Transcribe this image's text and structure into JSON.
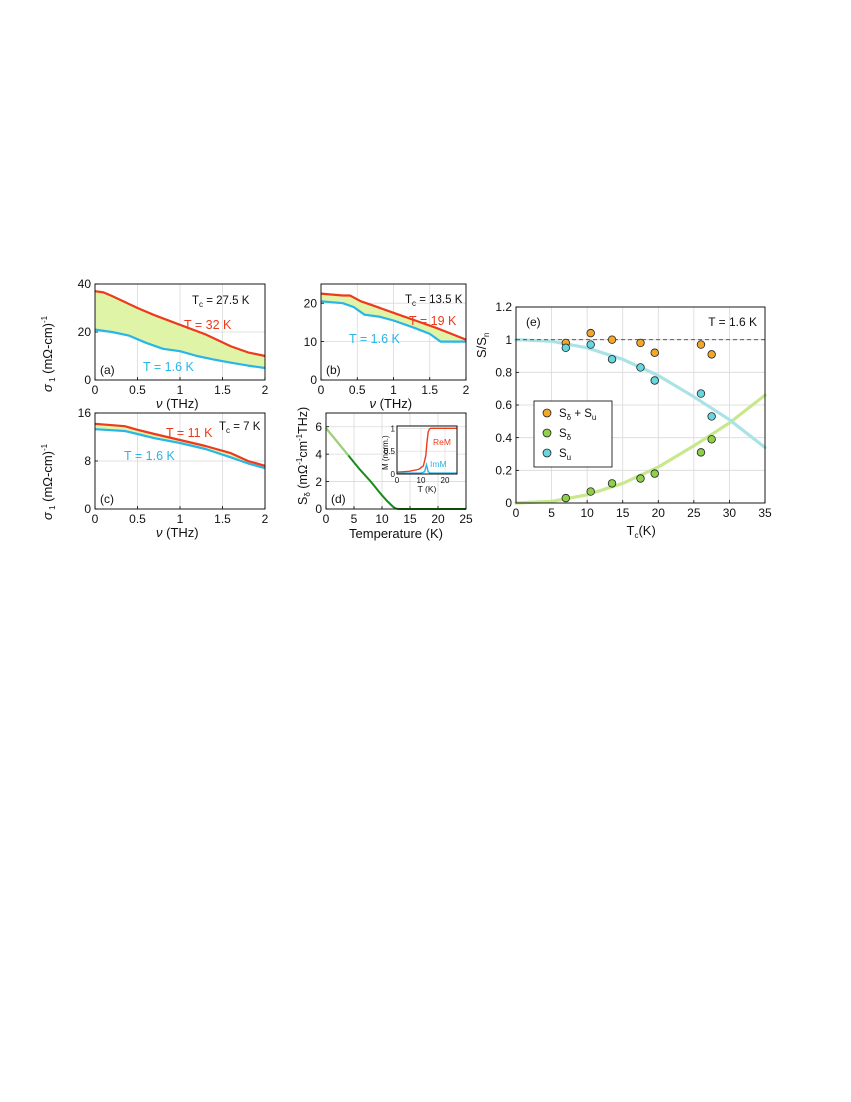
{
  "colors": {
    "red": "#ee3a1c",
    "blue": "#29b5e8",
    "fill": "#e0f4a8",
    "orange": "#f3a62a",
    "green": "#8ed04a",
    "cyan": "#66d7de",
    "dark_green": "#1a8a1a",
    "grid": "#d9d9d9",
    "green_fit": "#c7e88c",
    "cyan_fit": "#a9e3e6"
  },
  "chart_data": [
    {
      "type": "line",
      "panel": "(a)",
      "xlabel": "ν (THz)",
      "ylabel": "σ 1 (mΩ-cm)-1",
      "xlim": [
        0,
        2
      ],
      "ylim": [
        0,
        40
      ],
      "xticks": [
        "0",
        "0.5",
        "1",
        "1.5",
        "2"
      ],
      "yticks": [
        "0",
        "20",
        "40"
      ],
      "tc_label": "Tc = 27.5 K",
      "shaded": true,
      "series": [
        {
          "name": "T = 32 K",
          "color": "red",
          "x": [
            0,
            0.1,
            0.2,
            0.35,
            0.5,
            0.7,
            1.0,
            1.3,
            1.6,
            1.8,
            2.0
          ],
          "y": [
            37,
            36.5,
            35,
            32.5,
            30,
            27,
            23,
            19,
            14,
            11.5,
            10
          ]
        },
        {
          "name": "T = 1.6 K",
          "color": "blue",
          "x": [
            0,
            0.2,
            0.4,
            0.6,
            0.8,
            1.0,
            1.2,
            1.4,
            1.6,
            1.8,
            2.0
          ],
          "y": [
            21,
            20,
            18.5,
            15.5,
            13,
            12,
            10,
            8.5,
            7.2,
            6,
            5
          ]
        }
      ]
    },
    {
      "type": "line",
      "panel": "(b)",
      "xlabel": "ν (THz)",
      "ylabel": "",
      "xlim": [
        0,
        2
      ],
      "ylim": [
        0,
        25
      ],
      "xticks": [
        "0",
        "0.5",
        "1",
        "1.5",
        "2"
      ],
      "yticks": [
        "0",
        "10",
        "20"
      ],
      "tc_label": "Tc = 13.5 K",
      "shaded": true,
      "series": [
        {
          "name": "T = 19 K",
          "color": "red",
          "x": [
            0,
            0.3,
            0.4,
            0.55,
            0.7,
            1.0,
            1.3,
            1.6,
            1.8,
            2.0
          ],
          "y": [
            22.5,
            22,
            22,
            20.5,
            19.5,
            17.5,
            15.5,
            13.5,
            12,
            10.5
          ]
        },
        {
          "name": "T = 1.6 K",
          "color": "blue",
          "x": [
            0,
            0.3,
            0.45,
            0.6,
            0.8,
            1.0,
            1.3,
            1.5,
            1.65,
            1.8,
            2.0
          ],
          "y": [
            20.5,
            20,
            19,
            17,
            16.5,
            15.5,
            13.5,
            12,
            10,
            10,
            10
          ]
        }
      ]
    },
    {
      "type": "line",
      "panel": "(c)",
      "xlabel": "ν (THz)",
      "ylabel": "σ 1 (mΩ-cm)-1",
      "xlim": [
        0,
        2
      ],
      "ylim": [
        0,
        16
      ],
      "xticks": [
        "0",
        "0.5",
        "1",
        "1.5",
        "2"
      ],
      "yticks": [
        "0",
        "8",
        "16"
      ],
      "tc_label": "Tc = 7 K",
      "shaded": true,
      "series": [
        {
          "name": "T = 11 K",
          "color": "red",
          "x": [
            0,
            0.35,
            0.5,
            0.7,
            1.0,
            1.3,
            1.6,
            1.8,
            2.0
          ],
          "y": [
            14.2,
            13.8,
            13.2,
            12.5,
            11.5,
            10.5,
            9.3,
            8,
            7.2
          ]
        },
        {
          "name": "T = 1.6 K",
          "color": "blue",
          "x": [
            0,
            0.35,
            0.5,
            0.7,
            1.0,
            1.3,
            1.6,
            1.8,
            2.0
          ],
          "y": [
            13.3,
            13,
            12.5,
            11.8,
            11,
            10,
            8.6,
            7.6,
            6.8
          ]
        }
      ]
    },
    {
      "type": "line",
      "panel": "(d)",
      "xlabel": "Temperature (K)",
      "ylabel": "Sδ (mΩ-1cm-1THz)",
      "xlim": [
        0,
        25
      ],
      "ylim": [
        0,
        7
      ],
      "xticks": [
        "0",
        "5",
        "10",
        "15",
        "20",
        "25"
      ],
      "yticks": [
        "0",
        "2",
        "4",
        "6"
      ],
      "series": [
        {
          "name": "Sδ",
          "color": "dark_green",
          "x": [
            0,
            2,
            4,
            6,
            8,
            10,
            11,
            12,
            12.5,
            13,
            14,
            16,
            20,
            25
          ],
          "y": [
            5.9,
            4.9,
            3.9,
            2.9,
            2.0,
            1.0,
            0.55,
            0.15,
            0.03,
            0,
            0,
            0,
            0,
            0
          ]
        }
      ],
      "inset": {
        "xlabel": "T (K)",
        "ylabel": "M (norm.)",
        "xlim": [
          0,
          25
        ],
        "ylim": [
          0,
          1.05
        ],
        "xticks": [
          "0",
          "10",
          "20"
        ],
        "yticks": [
          "0",
          "0.5",
          "1"
        ],
        "series": [
          {
            "name": "ReM",
            "color": "red",
            "x": [
              0,
              5,
              9,
              11,
              12,
              12.5,
              13,
              13.5,
              14,
              25
            ],
            "y": [
              0.04,
              0.06,
              0.1,
              0.18,
              0.4,
              0.7,
              0.92,
              0.98,
              1,
              1
            ]
          },
          {
            "name": "ImM",
            "color": "blue",
            "x": [
              0,
              10,
              11.5,
              12.3,
              13,
              13.7,
              15,
              25
            ],
            "y": [
              0.02,
              0.02,
              0.05,
              0.2,
              0.05,
              0.02,
              0.02,
              0.02
            ]
          }
        ]
      }
    },
    {
      "type": "scatter",
      "panel": "(e)",
      "xlabel": "Tc(K)",
      "ylabel": "S/Sn",
      "xlim": [
        0,
        35
      ],
      "ylim": [
        0,
        1.2
      ],
      "xticks": [
        "0",
        "5",
        "10",
        "15",
        "20",
        "25",
        "30",
        "35"
      ],
      "yticks": [
        "0",
        "0.2",
        "0.4",
        "0.6",
        "0.8",
        "1",
        "1.2"
      ],
      "annotation": "T = 1.6 K",
      "reference_line": 1,
      "legend_position": "middle-left",
      "series": [
        {
          "name": "Sδ + Su",
          "color": "orange",
          "x": [
            7,
            10.5,
            13.5,
            17.5,
            19.5,
            26,
            27.5
          ],
          "y": [
            0.98,
            1.04,
            1.0,
            0.98,
            0.92,
            0.97,
            0.91
          ]
        },
        {
          "name": "Sδ",
          "color": "green",
          "x": [
            7,
            10.5,
            13.5,
            17.5,
            19.5,
            26,
            27.5
          ],
          "y": [
            0.03,
            0.07,
            0.12,
            0.15,
            0.18,
            0.31,
            0.39
          ]
        },
        {
          "name": "Su",
          "color": "cyan",
          "x": [
            7,
            10.5,
            13.5,
            17.5,
            19.5,
            26,
            27.5
          ],
          "y": [
            0.95,
            0.97,
            0.88,
            0.83,
            0.75,
            0.67,
            0.53
          ]
        }
      ],
      "fits": [
        {
          "color": "green_fit",
          "x": [
            0,
            5,
            10,
            15,
            20,
            25,
            30,
            35
          ],
          "y": [
            0,
            0.01,
            0.05,
            0.12,
            0.22,
            0.35,
            0.49,
            0.66
          ]
        },
        {
          "color": "cyan_fit",
          "x": [
            0,
            5,
            10,
            15,
            20,
            25,
            30,
            35
          ],
          "y": [
            1.0,
            0.99,
            0.95,
            0.88,
            0.78,
            0.65,
            0.51,
            0.34
          ]
        }
      ]
    }
  ]
}
